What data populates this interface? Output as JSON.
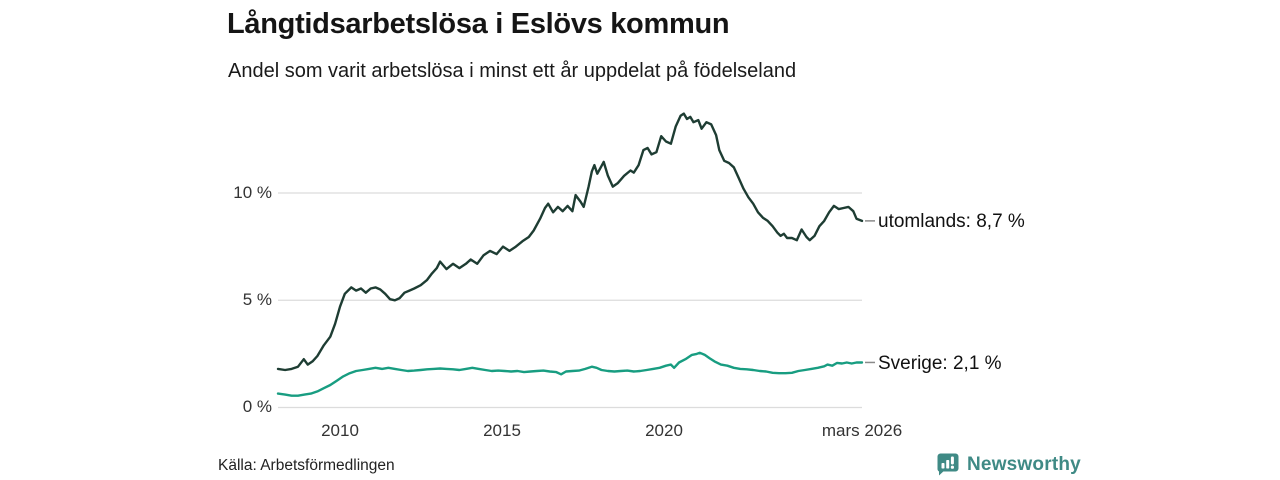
{
  "header": {
    "title": "Långtidsarbetslösa i Eslövs kommun",
    "subtitle": "Andel som varit arbetslösa i minst ett år uppdelat på födelseland"
  },
  "footer": {
    "source": "Källa: Arbetsförmedlingen",
    "brand": "Newsworthy"
  },
  "colors": {
    "utomlands_line": "#1e3d33",
    "sverige_line": "#189d81",
    "gridline": "#dcdcdc",
    "end_dash": "#8a8a8a",
    "brand_teal": "#3f8a85"
  },
  "chart_data": {
    "type": "line",
    "title": "Långtidsarbetslösa i Eslövs kommun",
    "subtitle": "Andel som varit arbetslösa i minst ett år uppdelat på födelseland",
    "xlabel": "",
    "ylabel": "",
    "ylim": [
      0,
      14.2
    ],
    "x_range_years": [
      2008.08,
      2026.17
    ],
    "grid": "horizontal",
    "legend_position": "right-end-labels",
    "y_ticks": [
      {
        "label": "10 %",
        "value": 10
      },
      {
        "label": "5 %",
        "value": 5
      },
      {
        "label": "0 %",
        "value": 0
      }
    ],
    "x_ticks": [
      {
        "label": "2010",
        "year": 2010
      },
      {
        "label": "2015",
        "year": 2015
      },
      {
        "label": "2020",
        "year": 2020
      },
      {
        "label": "mars 2026",
        "year": 2026.17
      }
    ],
    "series": [
      {
        "name": "utomlands",
        "end_label": "utomlands: 8,7 %",
        "last_value": "8,7 %",
        "color_key": "utomlands_line",
        "points": [
          [
            2008.08,
            1.8
          ],
          [
            2008.3,
            1.75
          ],
          [
            2008.5,
            1.8
          ],
          [
            2008.7,
            1.9
          ],
          [
            2008.88,
            2.25
          ],
          [
            2009.0,
            2.0
          ],
          [
            2009.15,
            2.15
          ],
          [
            2009.3,
            2.4
          ],
          [
            2009.5,
            2.9
          ],
          [
            2009.7,
            3.3
          ],
          [
            2009.85,
            3.9
          ],
          [
            2010.0,
            4.7
          ],
          [
            2010.15,
            5.3
          ],
          [
            2010.35,
            5.6
          ],
          [
            2010.5,
            5.45
          ],
          [
            2010.65,
            5.55
          ],
          [
            2010.8,
            5.35
          ],
          [
            2010.95,
            5.55
          ],
          [
            2011.1,
            5.6
          ],
          [
            2011.25,
            5.5
          ],
          [
            2011.4,
            5.3
          ],
          [
            2011.55,
            5.05
          ],
          [
            2011.7,
            5.0
          ],
          [
            2011.85,
            5.1
          ],
          [
            2012.0,
            5.35
          ],
          [
            2012.15,
            5.45
          ],
          [
            2012.3,
            5.55
          ],
          [
            2012.5,
            5.7
          ],
          [
            2012.7,
            5.95
          ],
          [
            2012.85,
            6.25
          ],
          [
            2013.0,
            6.5
          ],
          [
            2013.1,
            6.8
          ],
          [
            2013.3,
            6.45
          ],
          [
            2013.5,
            6.7
          ],
          [
            2013.7,
            6.5
          ],
          [
            2013.9,
            6.7
          ],
          [
            2014.05,
            6.9
          ],
          [
            2014.25,
            6.7
          ],
          [
            2014.45,
            7.1
          ],
          [
            2014.65,
            7.3
          ],
          [
            2014.85,
            7.15
          ],
          [
            2015.05,
            7.5
          ],
          [
            2015.25,
            7.3
          ],
          [
            2015.45,
            7.5
          ],
          [
            2015.65,
            7.75
          ],
          [
            2015.85,
            7.95
          ],
          [
            2016.0,
            8.25
          ],
          [
            2016.2,
            8.8
          ],
          [
            2016.35,
            9.3
          ],
          [
            2016.45,
            9.5
          ],
          [
            2016.6,
            9.1
          ],
          [
            2016.75,
            9.35
          ],
          [
            2016.9,
            9.15
          ],
          [
            2017.05,
            9.4
          ],
          [
            2017.2,
            9.15
          ],
          [
            2017.3,
            9.9
          ],
          [
            2017.45,
            9.6
          ],
          [
            2017.55,
            9.35
          ],
          [
            2017.7,
            10.3
          ],
          [
            2017.8,
            11.0
          ],
          [
            2017.88,
            11.3
          ],
          [
            2017.97,
            10.9
          ],
          [
            2018.08,
            11.2
          ],
          [
            2018.17,
            11.45
          ],
          [
            2018.3,
            10.8
          ],
          [
            2018.45,
            10.3
          ],
          [
            2018.6,
            10.45
          ],
          [
            2018.8,
            10.8
          ],
          [
            2019.0,
            11.05
          ],
          [
            2019.1,
            10.95
          ],
          [
            2019.25,
            11.3
          ],
          [
            2019.4,
            12.0
          ],
          [
            2019.53,
            12.1
          ],
          [
            2019.65,
            11.8
          ],
          [
            2019.8,
            11.9
          ],
          [
            2019.95,
            12.65
          ],
          [
            2020.1,
            12.4
          ],
          [
            2020.25,
            12.3
          ],
          [
            2020.4,
            13.1
          ],
          [
            2020.55,
            13.6
          ],
          [
            2020.65,
            13.7
          ],
          [
            2020.75,
            13.45
          ],
          [
            2020.85,
            13.55
          ],
          [
            2020.95,
            13.3
          ],
          [
            2021.1,
            13.4
          ],
          [
            2021.2,
            13.0
          ],
          [
            2021.35,
            13.3
          ],
          [
            2021.5,
            13.2
          ],
          [
            2021.65,
            12.7
          ],
          [
            2021.75,
            12.0
          ],
          [
            2021.9,
            11.5
          ],
          [
            2022.05,
            11.4
          ],
          [
            2022.2,
            11.2
          ],
          [
            2022.35,
            10.7
          ],
          [
            2022.5,
            10.2
          ],
          [
            2022.65,
            9.8
          ],
          [
            2022.8,
            9.5
          ],
          [
            2022.95,
            9.1
          ],
          [
            2023.1,
            8.85
          ],
          [
            2023.25,
            8.7
          ],
          [
            2023.4,
            8.45
          ],
          [
            2023.55,
            8.15
          ],
          [
            2023.65,
            8.0
          ],
          [
            2023.75,
            8.1
          ],
          [
            2023.85,
            7.9
          ],
          [
            2024.0,
            7.9
          ],
          [
            2024.15,
            7.8
          ],
          [
            2024.3,
            8.3
          ],
          [
            2024.45,
            7.95
          ],
          [
            2024.55,
            7.8
          ],
          [
            2024.7,
            8.0
          ],
          [
            2024.85,
            8.45
          ],
          [
            2025.0,
            8.7
          ],
          [
            2025.15,
            9.1
          ],
          [
            2025.3,
            9.4
          ],
          [
            2025.45,
            9.25
          ],
          [
            2025.6,
            9.3
          ],
          [
            2025.75,
            9.35
          ],
          [
            2025.9,
            9.15
          ],
          [
            2026.0,
            8.8
          ],
          [
            2026.17,
            8.7
          ]
        ]
      },
      {
        "name": "Sverige",
        "end_label": "Sverige: 2,1 %",
        "last_value": "2,1 %",
        "color_key": "sverige_line",
        "points": [
          [
            2008.08,
            0.65
          ],
          [
            2008.3,
            0.6
          ],
          [
            2008.5,
            0.55
          ],
          [
            2008.7,
            0.55
          ],
          [
            2008.9,
            0.6
          ],
          [
            2009.1,
            0.65
          ],
          [
            2009.3,
            0.75
          ],
          [
            2009.5,
            0.9
          ],
          [
            2009.7,
            1.05
          ],
          [
            2009.9,
            1.25
          ],
          [
            2010.1,
            1.45
          ],
          [
            2010.3,
            1.6
          ],
          [
            2010.5,
            1.7
          ],
          [
            2010.7,
            1.75
          ],
          [
            2010.9,
            1.8
          ],
          [
            2011.1,
            1.85
          ],
          [
            2011.3,
            1.8
          ],
          [
            2011.5,
            1.85
          ],
          [
            2011.7,
            1.8
          ],
          [
            2011.9,
            1.75
          ],
          [
            2012.1,
            1.7
          ],
          [
            2012.3,
            1.72
          ],
          [
            2012.5,
            1.75
          ],
          [
            2012.7,
            1.78
          ],
          [
            2012.9,
            1.8
          ],
          [
            2013.1,
            1.82
          ],
          [
            2013.3,
            1.8
          ],
          [
            2013.5,
            1.78
          ],
          [
            2013.7,
            1.75
          ],
          [
            2013.9,
            1.8
          ],
          [
            2014.1,
            1.85
          ],
          [
            2014.3,
            1.8
          ],
          [
            2014.5,
            1.75
          ],
          [
            2014.7,
            1.7
          ],
          [
            2014.9,
            1.72
          ],
          [
            2015.1,
            1.7
          ],
          [
            2015.3,
            1.68
          ],
          [
            2015.5,
            1.7
          ],
          [
            2015.7,
            1.65
          ],
          [
            2015.9,
            1.68
          ],
          [
            2016.1,
            1.7
          ],
          [
            2016.3,
            1.72
          ],
          [
            2016.5,
            1.68
          ],
          [
            2016.7,
            1.65
          ],
          [
            2016.85,
            1.55
          ],
          [
            2017.0,
            1.68
          ],
          [
            2017.2,
            1.7
          ],
          [
            2017.4,
            1.72
          ],
          [
            2017.6,
            1.8
          ],
          [
            2017.8,
            1.9
          ],
          [
            2017.95,
            1.85
          ],
          [
            2018.1,
            1.75
          ],
          [
            2018.3,
            1.7
          ],
          [
            2018.5,
            1.68
          ],
          [
            2018.7,
            1.7
          ],
          [
            2018.9,
            1.72
          ],
          [
            2019.1,
            1.68
          ],
          [
            2019.3,
            1.7
          ],
          [
            2019.5,
            1.75
          ],
          [
            2019.7,
            1.8
          ],
          [
            2019.9,
            1.85
          ],
          [
            2020.1,
            1.95
          ],
          [
            2020.25,
            2.0
          ],
          [
            2020.35,
            1.85
          ],
          [
            2020.5,
            2.1
          ],
          [
            2020.7,
            2.25
          ],
          [
            2020.9,
            2.45
          ],
          [
            2021.05,
            2.5
          ],
          [
            2021.15,
            2.55
          ],
          [
            2021.3,
            2.45
          ],
          [
            2021.45,
            2.3
          ],
          [
            2021.6,
            2.15
          ],
          [
            2021.8,
            2.0
          ],
          [
            2022.0,
            1.95
          ],
          [
            2022.2,
            1.85
          ],
          [
            2022.4,
            1.8
          ],
          [
            2022.6,
            1.78
          ],
          [
            2022.8,
            1.75
          ],
          [
            2023.0,
            1.7
          ],
          [
            2023.2,
            1.68
          ],
          [
            2023.4,
            1.62
          ],
          [
            2023.6,
            1.6
          ],
          [
            2023.8,
            1.6
          ],
          [
            2024.0,
            1.62
          ],
          [
            2024.2,
            1.7
          ],
          [
            2024.4,
            1.75
          ],
          [
            2024.6,
            1.8
          ],
          [
            2024.8,
            1.85
          ],
          [
            2025.0,
            1.92
          ],
          [
            2025.1,
            2.0
          ],
          [
            2025.25,
            1.95
          ],
          [
            2025.4,
            2.08
          ],
          [
            2025.55,
            2.05
          ],
          [
            2025.7,
            2.1
          ],
          [
            2025.85,
            2.05
          ],
          [
            2026.0,
            2.1
          ],
          [
            2026.17,
            2.1
          ]
        ]
      }
    ]
  }
}
